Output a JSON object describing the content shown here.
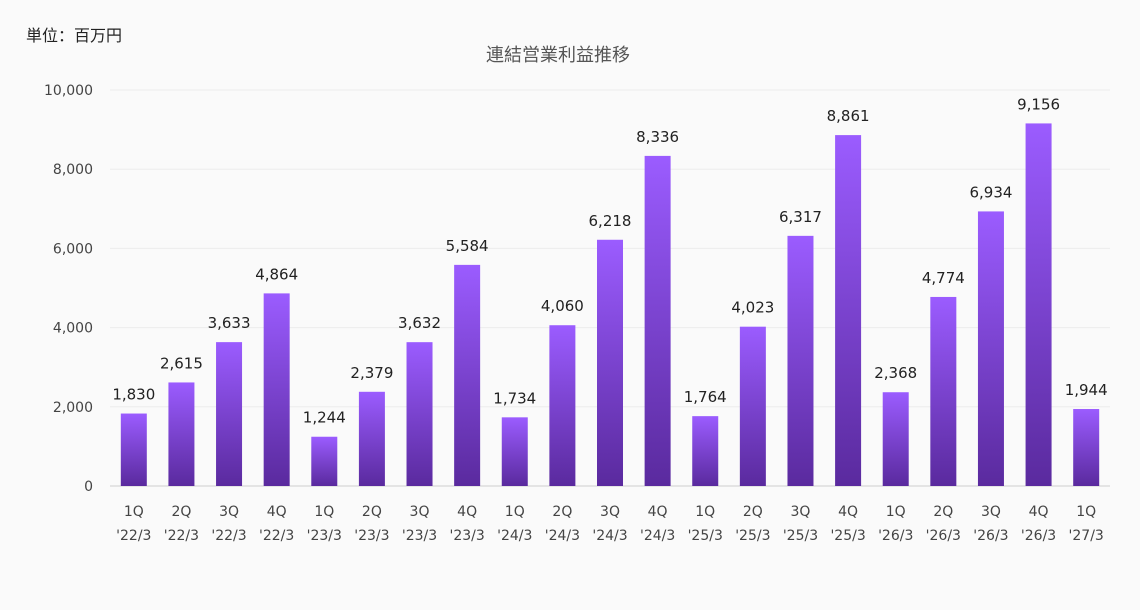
{
  "unit_label": "単位：百万円",
  "chart_data": {
    "type": "bar",
    "title": "連結営業利益推移",
    "xlabel": "",
    "ylabel": "",
    "ylim": [
      0,
      10000
    ],
    "yticks": [
      {
        "value": 0,
        "label": "0"
      },
      {
        "value": 2000,
        "label": "2,000"
      },
      {
        "value": 4000,
        "label": "4,000"
      },
      {
        "value": 6000,
        "label": "6,000"
      },
      {
        "value": 8000,
        "label": "8,000"
      },
      {
        "value": 10000,
        "label": "10,000"
      }
    ],
    "grid": true,
    "legend": "none",
    "colors": {
      "bar_top": "#9b5cff",
      "bar_bottom": "#5a2a9e"
    },
    "categories": [
      {
        "q": "1Q",
        "fy": "'22/3"
      },
      {
        "q": "2Q",
        "fy": "'22/3"
      },
      {
        "q": "3Q",
        "fy": "'22/3"
      },
      {
        "q": "4Q",
        "fy": "'22/3"
      },
      {
        "q": "1Q",
        "fy": "'23/3"
      },
      {
        "q": "2Q",
        "fy": "'23/3"
      },
      {
        "q": "3Q",
        "fy": "'23/3"
      },
      {
        "q": "4Q",
        "fy": "'23/3"
      },
      {
        "q": "1Q",
        "fy": "'24/3"
      },
      {
        "q": "2Q",
        "fy": "'24/3"
      },
      {
        "q": "3Q",
        "fy": "'24/3"
      },
      {
        "q": "4Q",
        "fy": "'24/3"
      },
      {
        "q": "1Q",
        "fy": "'25/3"
      },
      {
        "q": "2Q",
        "fy": "'25/3"
      },
      {
        "q": "3Q",
        "fy": "'25/3"
      },
      {
        "q": "4Q",
        "fy": "'25/3"
      },
      {
        "q": "1Q",
        "fy": "'26/3"
      },
      {
        "q": "2Q",
        "fy": "'26/3"
      },
      {
        "q": "3Q",
        "fy": "'26/3"
      },
      {
        "q": "4Q",
        "fy": "'26/3"
      },
      {
        "q": "1Q",
        "fy": "'27/3"
      }
    ],
    "values": [
      1830,
      2615,
      3633,
      4864,
      1244,
      2379,
      3632,
      5584,
      1734,
      4060,
      6218,
      8336,
      1764,
      4023,
      6317,
      8861,
      2368,
      4774,
      6934,
      9156,
      1944
    ],
    "value_labels": [
      "1,830",
      "2,615",
      "3,633",
      "4,864",
      "1,244",
      "2,379",
      "3,632",
      "5,584",
      "1,734",
      "4,060",
      "6,218",
      "8,336",
      "1,764",
      "4,023",
      "6,317",
      "8,861",
      "2,368",
      "4,774",
      "6,934",
      "9,156",
      "1,944"
    ]
  }
}
